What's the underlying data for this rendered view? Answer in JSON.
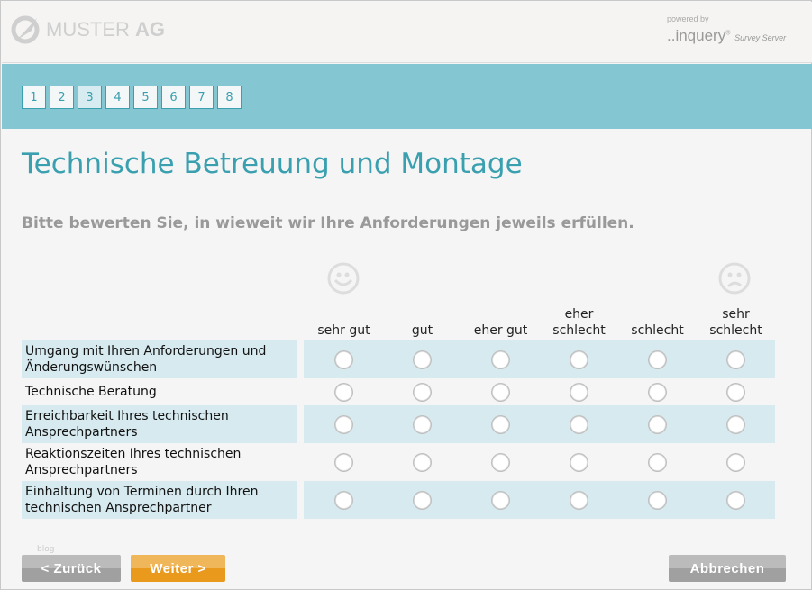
{
  "header": {
    "logo_text_light": "MUSTER",
    "logo_text_bold": "AG",
    "powered_by": "powered by",
    "inquery": "..inquery",
    "survey_server": "Survey Server"
  },
  "pages": [
    {
      "label": "1"
    },
    {
      "label": "2"
    },
    {
      "label": "3",
      "active": true
    },
    {
      "label": "4"
    },
    {
      "label": "5"
    },
    {
      "label": "6"
    },
    {
      "label": "7"
    },
    {
      "label": "8"
    }
  ],
  "title": "Technische Betreuung und Montage",
  "question": "Bitte bewerten Sie, in wieweit wir Ihre Anforderungen jeweils erfüllen.",
  "columns": [
    {
      "l1": "",
      "l2": "sehr gut"
    },
    {
      "l1": "",
      "l2": "gut"
    },
    {
      "l1": "",
      "l2": "eher gut"
    },
    {
      "l1": "eher",
      "l2": "schlecht"
    },
    {
      "l1": "",
      "l2": "schlecht"
    },
    {
      "l1": "sehr",
      "l2": "schlecht"
    }
  ],
  "rows": [
    {
      "label": "Umgang mit Ihren Anforderungen und Änderungswünschen"
    },
    {
      "label": "Technische Beratung"
    },
    {
      "label": "Erreichbarkeit Ihres technischen Ansprechpartners"
    },
    {
      "label": "Reaktionszeiten Ihres technischen Ansprechpartners"
    },
    {
      "label": "Einhaltung von Terminen durch Ihren technischen Ansprechpartner"
    }
  ],
  "footer": {
    "blog": "blog",
    "back": "< Zurück",
    "next": "Weiter >",
    "cancel": "Abbrechen"
  },
  "colors": {
    "accent": "#3aa0b0",
    "band": "#84c6d2",
    "row_alt": "#d6eaef",
    "next": "#e99a1d"
  }
}
